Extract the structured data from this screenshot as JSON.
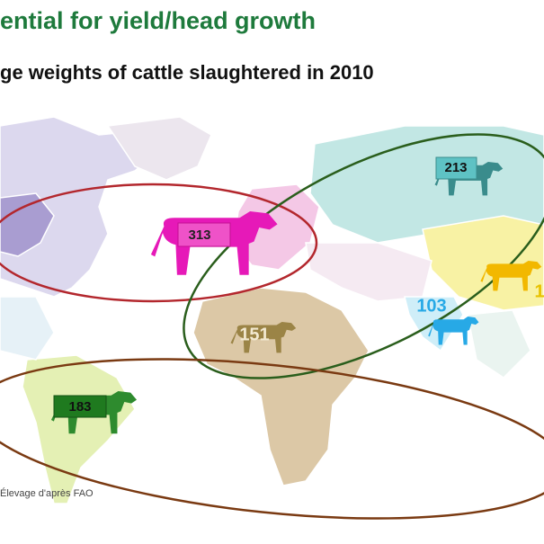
{
  "header": {
    "title": "ential for yield/head growth",
    "subtitle": "ge weights of cattle slaughtered in 2010"
  },
  "map": {
    "labels": [
      {
        "region": "Russia",
        "value": 213
      },
      {
        "region": "Europe",
        "value": 313
      },
      {
        "region": "Africa",
        "value": 151
      },
      {
        "region": "India",
        "value": 103
      },
      {
        "region": "South America",
        "value": 183
      },
      {
        "region": "China",
        "value": 1
      }
    ]
  },
  "source": "Élevage d'après FAO"
}
